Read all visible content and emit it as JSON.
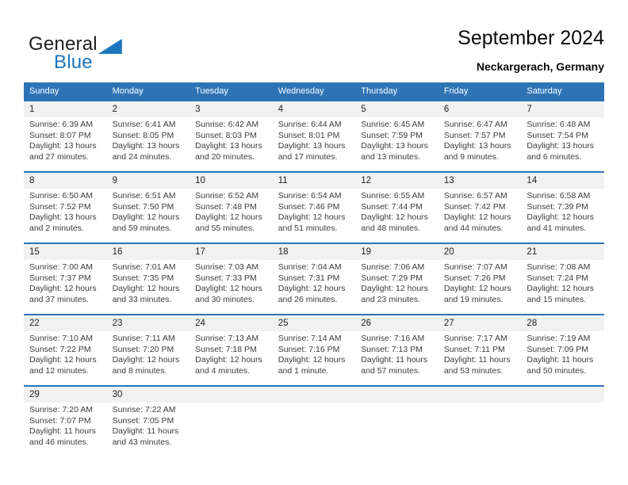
{
  "logo": {
    "part1": "General",
    "part2": "Blue"
  },
  "header": {
    "title": "September 2024",
    "location": "Neckargerach, Germany"
  },
  "colors": {
    "header_blue": "#2e74b5",
    "logo_blue": "#1b75bc",
    "date_band_gray": "#f1f1f1"
  },
  "calendar": {
    "day_names": [
      "Sunday",
      "Monday",
      "Tuesday",
      "Wednesday",
      "Thursday",
      "Friday",
      "Saturday"
    ],
    "weeks": [
      [
        {
          "day": "1",
          "sunrise": "Sunrise: 6:39 AM",
          "sunset": "Sunset: 8:07 PM",
          "daylight1": "Daylight: 13 hours",
          "daylight2": "and 27 minutes."
        },
        {
          "day": "2",
          "sunrise": "Sunrise: 6:41 AM",
          "sunset": "Sunset: 8:05 PM",
          "daylight1": "Daylight: 13 hours",
          "daylight2": "and 24 minutes."
        },
        {
          "day": "3",
          "sunrise": "Sunrise: 6:42 AM",
          "sunset": "Sunset: 8:03 PM",
          "daylight1": "Daylight: 13 hours",
          "daylight2": "and 20 minutes."
        },
        {
          "day": "4",
          "sunrise": "Sunrise: 6:44 AM",
          "sunset": "Sunset: 8:01 PM",
          "daylight1": "Daylight: 13 hours",
          "daylight2": "and 17 minutes."
        },
        {
          "day": "5",
          "sunrise": "Sunrise: 6:45 AM",
          "sunset": "Sunset: 7:59 PM",
          "daylight1": "Daylight: 13 hours",
          "daylight2": "and 13 minutes."
        },
        {
          "day": "6",
          "sunrise": "Sunrise: 6:47 AM",
          "sunset": "Sunset: 7:57 PM",
          "daylight1": "Daylight: 13 hours",
          "daylight2": "and 9 minutes."
        },
        {
          "day": "7",
          "sunrise": "Sunrise: 6:48 AM",
          "sunset": "Sunset: 7:54 PM",
          "daylight1": "Daylight: 13 hours",
          "daylight2": "and 6 minutes."
        }
      ],
      [
        {
          "day": "8",
          "sunrise": "Sunrise: 6:50 AM",
          "sunset": "Sunset: 7:52 PM",
          "daylight1": "Daylight: 13 hours",
          "daylight2": "and 2 minutes."
        },
        {
          "day": "9",
          "sunrise": "Sunrise: 6:51 AM",
          "sunset": "Sunset: 7:50 PM",
          "daylight1": "Daylight: 12 hours",
          "daylight2": "and 59 minutes."
        },
        {
          "day": "10",
          "sunrise": "Sunrise: 6:52 AM",
          "sunset": "Sunset: 7:48 PM",
          "daylight1": "Daylight: 12 hours",
          "daylight2": "and 55 minutes."
        },
        {
          "day": "11",
          "sunrise": "Sunrise: 6:54 AM",
          "sunset": "Sunset: 7:46 PM",
          "daylight1": "Daylight: 12 hours",
          "daylight2": "and 51 minutes."
        },
        {
          "day": "12",
          "sunrise": "Sunrise: 6:55 AM",
          "sunset": "Sunset: 7:44 PM",
          "daylight1": "Daylight: 12 hours",
          "daylight2": "and 48 minutes."
        },
        {
          "day": "13",
          "sunrise": "Sunrise: 6:57 AM",
          "sunset": "Sunset: 7:42 PM",
          "daylight1": "Daylight: 12 hours",
          "daylight2": "and 44 minutes."
        },
        {
          "day": "14",
          "sunrise": "Sunrise: 6:58 AM",
          "sunset": "Sunset: 7:39 PM",
          "daylight1": "Daylight: 12 hours",
          "daylight2": "and 41 minutes."
        }
      ],
      [
        {
          "day": "15",
          "sunrise": "Sunrise: 7:00 AM",
          "sunset": "Sunset: 7:37 PM",
          "daylight1": "Daylight: 12 hours",
          "daylight2": "and 37 minutes."
        },
        {
          "day": "16",
          "sunrise": "Sunrise: 7:01 AM",
          "sunset": "Sunset: 7:35 PM",
          "daylight1": "Daylight: 12 hours",
          "daylight2": "and 33 minutes."
        },
        {
          "day": "17",
          "sunrise": "Sunrise: 7:03 AM",
          "sunset": "Sunset: 7:33 PM",
          "daylight1": "Daylight: 12 hours",
          "daylight2": "and 30 minutes."
        },
        {
          "day": "18",
          "sunrise": "Sunrise: 7:04 AM",
          "sunset": "Sunset: 7:31 PM",
          "daylight1": "Daylight: 12 hours",
          "daylight2": "and 26 minutes."
        },
        {
          "day": "19",
          "sunrise": "Sunrise: 7:06 AM",
          "sunset": "Sunset: 7:29 PM",
          "daylight1": "Daylight: 12 hours",
          "daylight2": "and 23 minutes."
        },
        {
          "day": "20",
          "sunrise": "Sunrise: 7:07 AM",
          "sunset": "Sunset: 7:26 PM",
          "daylight1": "Daylight: 12 hours",
          "daylight2": "and 19 minutes."
        },
        {
          "day": "21",
          "sunrise": "Sunrise: 7:08 AM",
          "sunset": "Sunset: 7:24 PM",
          "daylight1": "Daylight: 12 hours",
          "daylight2": "and 15 minutes."
        }
      ],
      [
        {
          "day": "22",
          "sunrise": "Sunrise: 7:10 AM",
          "sunset": "Sunset: 7:22 PM",
          "daylight1": "Daylight: 12 hours",
          "daylight2": "and 12 minutes."
        },
        {
          "day": "23",
          "sunrise": "Sunrise: 7:11 AM",
          "sunset": "Sunset: 7:20 PM",
          "daylight1": "Daylight: 12 hours",
          "daylight2": "and 8 minutes."
        },
        {
          "day": "24",
          "sunrise": "Sunrise: 7:13 AM",
          "sunset": "Sunset: 7:18 PM",
          "daylight1": "Daylight: 12 hours",
          "daylight2": "and 4 minutes."
        },
        {
          "day": "25",
          "sunrise": "Sunrise: 7:14 AM",
          "sunset": "Sunset: 7:16 PM",
          "daylight1": "Daylight: 12 hours",
          "daylight2": "and 1 minute."
        },
        {
          "day": "26",
          "sunrise": "Sunrise: 7:16 AM",
          "sunset": "Sunset: 7:13 PM",
          "daylight1": "Daylight: 11 hours",
          "daylight2": "and 57 minutes."
        },
        {
          "day": "27",
          "sunrise": "Sunrise: 7:17 AM",
          "sunset": "Sunset: 7:11 PM",
          "daylight1": "Daylight: 11 hours",
          "daylight2": "and 53 minutes."
        },
        {
          "day": "28",
          "sunrise": "Sunrise: 7:19 AM",
          "sunset": "Sunset: 7:09 PM",
          "daylight1": "Daylight: 11 hours",
          "daylight2": "and 50 minutes."
        }
      ],
      [
        {
          "day": "29",
          "sunrise": "Sunrise: 7:20 AM",
          "sunset": "Sunset: 7:07 PM",
          "daylight1": "Daylight: 11 hours",
          "daylight2": "and 46 minutes."
        },
        {
          "day": "30",
          "sunrise": "Sunrise: 7:22 AM",
          "sunset": "Sunset: 7:05 PM",
          "daylight1": "Daylight: 11 hours",
          "daylight2": "and 43 minutes."
        },
        null,
        null,
        null,
        null,
        null
      ]
    ]
  }
}
